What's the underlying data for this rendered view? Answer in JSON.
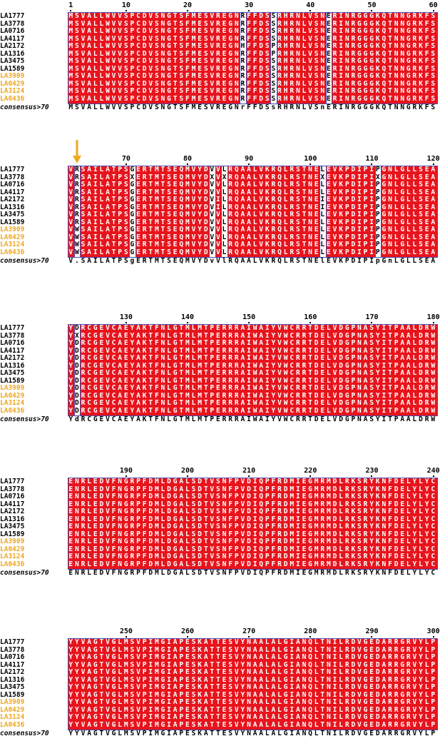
{
  "colors": {
    "conserved_bg": "#e8141c",
    "frame": "#4a4aa8",
    "highlight_label": "#f0a81e",
    "label": "#000000",
    "arrow": "#f0a81e"
  },
  "consensus_label": "consensus>70",
  "labels": [
    "LA1777",
    "LA3778",
    "LA0716",
    "LA4117",
    "LA2172",
    "LA1316",
    "LA3475",
    "LA1589",
    "LA3909",
    "LA0429",
    "LA3124",
    "LA0436"
  ],
  "highlighted_labels": [
    "LA3909",
    "LA0429",
    "LA3124",
    "LA0436"
  ],
  "blocks": [
    {
      "ticks": [
        {
          "text": "1",
          "col": 0
        },
        {
          "text": "10",
          "col": 9
        },
        {
          "text": "20",
          "col": 19
        },
        {
          "text": "30",
          "col": 29
        },
        {
          "text": "40",
          "col": 39
        },
        {
          "text": "50",
          "col": 49
        },
        {
          "text": "60",
          "col": 59
        }
      ],
      "rows": [
        "MSVALLWVVSPCDVSNGTSFMESVREGNRFFDSSRHRNLVSNERINRGGGKQTNNGRKFS",
        "MSVALLWVVSPCDVSNGTSFMESVREGNRFFDSSRHRNLVSNERINRGGGKQTNNGRKFS",
        "MSVALLWVVSPCDVSNGTSFMESVREGNRFFDSSRHRNLVSNERINRGGGKQTNNGRKFS",
        "MSVALLWVVSPCDVSNGTSFMESVREGNRFFDSSRHRNLVSNERINRGGGKQTNNGRKFS",
        "MSVALLWVVSPCDVSNGTSFMESVREGNHFFDSPRHRNLVSNERINRGGGKQTNNGRKFS",
        "MSVALLWVVSPCDVSNGTSFMESVREGNRFFDSPRHRNLVSNERINRGGGKQTNNGRKFS",
        "MSVALLWVVSPCDVSNGTSFMESVREGNRFFDSSRHRNLVSNERINRGGGKQTNNGRKFS",
        "MSVALLWVVSPCDVSNGTSFMESVREGNRFFDSSRHRNLVSNERINRGGGKQTNNGRKFS",
        "MSVALLWVVSPCDVSNGTSFMESVREGNRFFDSSRHRNLVSNERINRGGGKQTNNGRKFS",
        "MSVALLWVVSPCDVSNGTSFMESVREGNRFFDSSRHRNLVSNERINRGGGKQTNNGRKFS",
        "MSVALLWVVSPCDVSNGTSFMESVREGNRFFDSSRHRNLVSNERINRGGGKQTNNGRKFS",
        "MSVALLWVVSPCDVSNGTSFMESVREGNRFFDSSRHRNLVSNERINRGGGKQTNNGRKFS"
      ],
      "white_cols": [
        28,
        33,
        42
      ],
      "consensus": "MSVALLWVVSPCDVSNGTSFMESVREGNrFFDSsRHRNLVSnERINRGGGKQTNNGRKFS",
      "arrow": false
    },
    {
      "ticks": [
        {
          "text": "70",
          "col": 9
        },
        {
          "text": "80",
          "col": 19
        },
        {
          "text": "90",
          "col": 29
        },
        {
          "text": "100",
          "col": 39
        },
        {
          "text": "110",
          "col": 49
        },
        {
          "text": "120",
          "col": 59
        }
      ],
      "rows": [
        "VRSAILATPSGERTMTSEQMVYDVVLRQAALVKRQLRSTNELEVKPDIPIPGNLGLLSEA",
        "VRSAILATPSXERTMTSEQMVYDXVXRQAALVKRQLRSTNEXEVKPDIPIXGNLGLLSEA",
        "VRSAILATPSGERTMTSEQMVYDVVLRQAALVKRQLRSTNELEVKPDIPIPGNLGLLSEA",
        "VRSAILATPSGERTMTSEQMVYDVVLRQAALVKRQLRSTNELEVKPDIPIPGNLGLLSEA",
        "VRSAILATPSGERTMTSEQMVYDVILRQAALVKRQLRSTNEIEVKPDIPIPGNLGLLSEA",
        "VRSAILATPSGERTMTSEQMVYDVILRQAALVKRQLRSTNEIEVKPDIPIPGNLGLLSEA",
        "VRSAILATPSGERTMTSEQMVYDVVLRQAALVKRQLRSTNELEVKPDIPIPGNLGLLSEA",
        "VRSAILATPSGERTMTSEQMVYDVVLRQAALVKRQLRSTNELEVKPDIPIPGNLGLLSEA",
        "VWSAILATPSGERTMTSEQMVYDVVLRQAALVKRQLRSTNELEVKPDIPIPGNLGLLSEA",
        "VWSAILATPSGERTMTSEQMVYDVVLRQAALVKRQLRSTNELEVKPDIPIPGNLGLLSEA",
        "VWSAILATPSGERTMTSEQMVYDVVLRQAALVKRQLRSTNELEVKPDIPIPGNLGLLSEA",
        "VWSAILATPSGERTMTSEQMVYDVVLRQAALVKRQLRSTNELEVKPDIPIPGNLGLLSEA"
      ],
      "white_cols": [
        1,
        10,
        23,
        25,
        41,
        50
      ],
      "consensus": "V.SAILATPSgERTMTSEQMVYDvVlRQAALVKRQLRSTNElEVKPDIPIpGnLGLLSEA",
      "arrow": true
    },
    {
      "ticks": [
        {
          "text": "130",
          "col": 9
        },
        {
          "text": "140",
          "col": 19
        },
        {
          "text": "150",
          "col": 29
        },
        {
          "text": "160",
          "col": 39
        },
        {
          "text": "170",
          "col": 49
        },
        {
          "text": "180",
          "col": 59
        }
      ],
      "rows": [
        "YDRCGEVCAEYAKTFNLGTMLMTPERRRAIWAIYVWCRRTDELVDGPNASYITPAALDRW",
        "YXRCGEVCAEYAKTFNLGTMLMTPERRRAIWAIYVWCRRTDELVDGPNASYITPAALDRW",
        "YDRCGEVCAEYAKTFNLGTMLMTPERRRAIWAIYVWCRRTDELVDGPNASYITPAALDRW",
        "YDRCGEVCAEYAKTFNLGTMLMTPERRRAIWAIYVWCRRTDELVDGPNASYITPAALDRW",
        "YDRCGEVCAEYAKTFNLGTMLMTPERRRAIWAIYVWCRRTDELVDGPNASYITPAALDRW",
        "YDRCGEVCAEYAKTFNLGTMLMTPERRRAIWAIYVWCRRTDELVDGPNASYITPAALDRW",
        "YDRCGEVCAEYAKTFNLGTMLMTPERRRAIWAIYVWCRRTDELVDGPNASYITPAALDRW",
        "YDRCGEVCAEYAKTFNLGTMLMTPERRRAIWAIYVWCRRTDELVDGPNASYITPAALDRW",
        "YDRCGEVCAEYAKTFNLGTMLMTPERRRAIWAIYVWCRRTDELVDGPNASYITPAALDRW",
        "YDRCGEVCAEYAKTFNLGTMLMTPERRRAIWAIYVWCRRTDELVDGPNASYITPAALDRW",
        "YDRCGEVCAEYAKTFNLGTMLMTPERRRAIWAIYVWCRRTDELVDGPNASYITPAALDRW",
        "YDRCGEVCAEYAKTFNLGTMLMTPERRRAIWAIYVWCRRTDELVDGPNASYITPAALDRW"
      ],
      "white_cols": [
        1
      ],
      "consensus": "YdRCGEVCAEYAKTFNLGTMLMTPERRRAIWAIYVWCRRTDELVDGPNASYITPAALDRW",
      "arrow": false
    },
    {
      "ticks": [
        {
          "text": "190",
          "col": 9
        },
        {
          "text": "200",
          "col": 19
        },
        {
          "text": "210",
          "col": 29
        },
        {
          "text": "220",
          "col": 39
        },
        {
          "text": "230",
          "col": 49
        },
        {
          "text": "240",
          "col": 59
        }
      ],
      "rows": [
        "ENRLEDVFNGRPFDMLDGALSDTVSNFPVDIQPFRDMIEGMRMDLRKSRYKNFDELYLYC",
        "ENRLEDVFNGRPFDMLDGALSDTVSNFPVDIQPFRDMIEGMRMDLRKSRYKNFDELYLYC",
        "ENRLEDVFNGRPFDMLDGALSDTVSNFPVDIQPFRDMIEGMRMDLRKSRYKNFDELYLYC",
        "ENRLEDVFNGRPFDMLDGALSDTVSNFPVDIQPFRDMIEGMRMDLRKSRYKNFDELYLYC",
        "ENRLEDVFNGRPFDMLDGALSDTVSNFPVDIQPFRDMIEGMRMDLRKSRYKNFDELYLYC",
        "ENRLEDVFNGRPFDMLDGALSDTVSNFPVDIQPFRDMIEGMRMDLRKSRYKNFDELYLYC",
        "ENRLEDVFNGRPFDMLDGALSDTVSNFPVDIQPFRDMIEGMRMDLRKSRYKNFDELYLYC",
        "ENRLEDVFNGRPFDMLDGALSDTVSNFPVDIQPFRDMIEGMRMDLRKSRYKNFDELYLYC",
        "ENRLEDVFNGRPFDMLDGALSDTVSNFPVDIQPFRDMIEGMRMDLRKSRYKNFDELYLYC",
        "ENRLEDVFNGRPFDMLDGALSDTVSNFPVDIQPFRDMIEGMRMDLRKSRYKNFDELYLYC",
        "ENRLEDVFNGRPFDMLDGALSDTVSNFPVDIQPFRDMIEGMRMDLRKSRYKNFDELYLYC",
        "ENRLEDVFNGRPFDMLDGALSDTVSNFPVDIQPFRDMIEGMRMDLRKSRYKNFDELYLYC"
      ],
      "white_cols": [],
      "consensus": "ENRLEDVFNGRPFDMLDGALSDTVSNFPVDIQPFRDMIEGMRMDLRKSRYKNFDELYLYC",
      "arrow": false
    },
    {
      "ticks": [
        {
          "text": "250",
          "col": 9
        },
        {
          "text": "260",
          "col": 19
        },
        {
          "text": "270",
          "col": 29
        },
        {
          "text": "280",
          "col": 39
        },
        {
          "text": "290",
          "col": 49
        },
        {
          "text": "300",
          "col": 59
        }
      ],
      "rows": [
        "YYVAGTVGLMSVPIMGIAPESKATTESVYNAALALGIANQLTNILRDVGEDARRGRVYLP",
        "YYVAGTVGLMSVPIMGIAPESKATTESVYNAALALGIANQLTNILRDVGEDARRGRVYLP",
        "YYVAGTVGLMSVPIMGIAPESKATTESVYNAALALGIANQLTNILRDVGEDARRGRVYLP",
        "YYVAGTVGLMSVPIMGIAPESKATTESVYNAALALGIANQLTNILRDVGEDARRGRVYLP",
        "YYVAGTVGLMSVPIMGIAPESKATTESVYNAALALGIANQLTNILRDVGEDARRGRVYLP",
        "YYVAGTVGLMSVPIMGIAPESKATTESVYNAALALGIANQLTNILRDVGEDARRGRVYLP",
        "YYVAGTVGLMSVPIMGIAPESKATTESVYNAALALGIANQLTNILRDVGEDARRGRVYLP",
        "YYVAGTVGLMSVPIMGIAPESKATTESVYNAALALGIANQLTNILRDVGEDARRGRVYLP",
        "YYVAGTVGLMSVPIMGIAPESKATTESVYNAALALGIANQLTNILRDVGEDARRGRVYLP",
        "YYVAGTVGLMSVPIMGIAPESKATTESVYNAALALGIANQLTNILRDVGEDARRGRVYLP",
        "YYVAGTVGLMSVPIMGIAPESKATTESVYNAALALGIANQLTNILRDVGEDARRGRVYLP",
        "YYVAGTVGLMSVPIMGIAPESKATTESVYNAALALGIANQLTNILRDVGEDARRGRVYLP"
      ],
      "white_cols": [],
      "consensus": "YYVAGTVGLMSVPIMGIAPESKATTESVYNAALALGIANQLTNILRDVGEDARRGRVYLP",
      "arrow": false
    }
  ]
}
